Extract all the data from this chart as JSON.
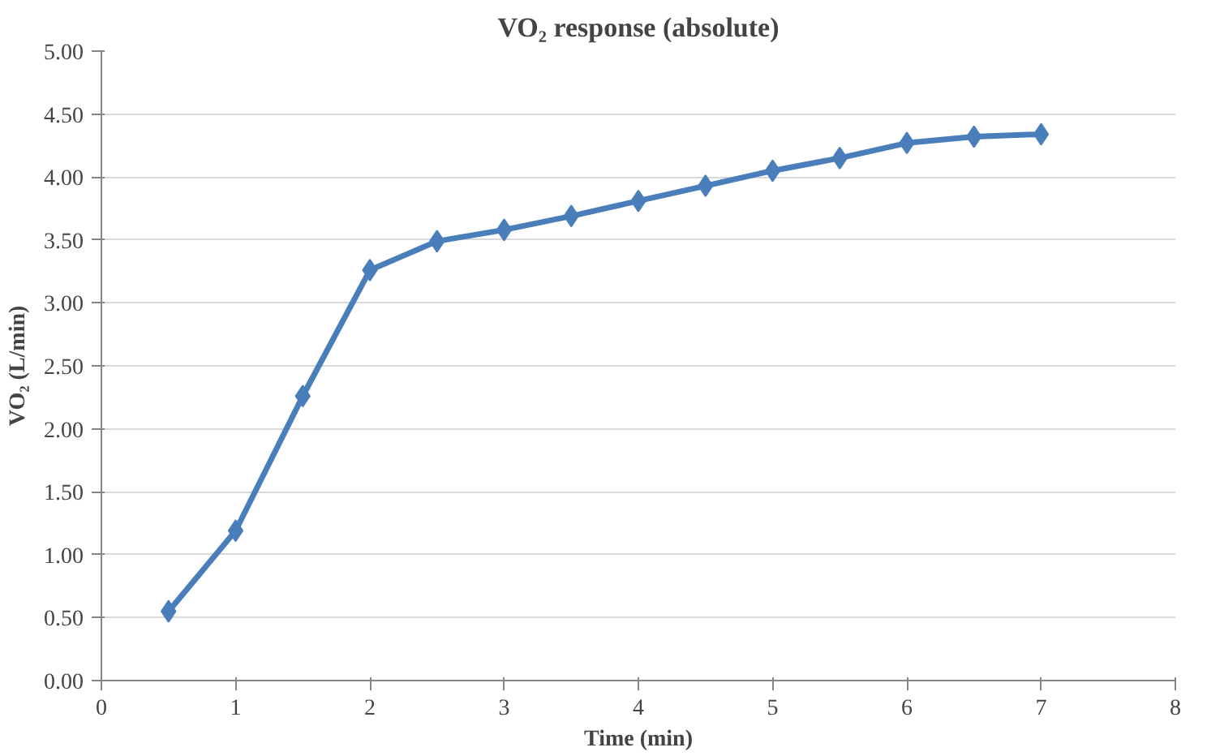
{
  "chart_data": {
    "type": "line",
    "title": "VO₂ response (absolute)",
    "xlabel": "Time (min)",
    "ylabel": "VO₂ (L/min)",
    "x": [
      0.5,
      1,
      1.5,
      2,
      2.5,
      3,
      3.5,
      4,
      4.5,
      5,
      5.5,
      6,
      6.5,
      7
    ],
    "series": [
      {
        "color": "#4a7ebb",
        "values": [
          0.55,
          1.19,
          2.26,
          3.26,
          3.49,
          3.58,
          3.69,
          3.81,
          3.93,
          4.05,
          4.15,
          4.27,
          4.32,
          4.34
        ]
      }
    ],
    "xlim": [
      0,
      8
    ],
    "ylim": [
      0,
      5
    ],
    "xticks": [
      0,
      1,
      2,
      3,
      4,
      5,
      6,
      7,
      8
    ],
    "yticks": [
      {
        "value": 0,
        "label": "0.00"
      },
      {
        "value": 0.5,
        "label": "0.50"
      },
      {
        "value": 1,
        "label": "1.00"
      },
      {
        "value": 1.5,
        "label": "1.50"
      },
      {
        "value": 2,
        "label": "2.00"
      },
      {
        "value": 2.5,
        "label": "2.50"
      },
      {
        "value": 3,
        "label": "3.00"
      },
      {
        "value": 3.5,
        "label": "3.50"
      },
      {
        "value": 4,
        "label": "4.00"
      },
      {
        "value": 4.5,
        "label": "4.50"
      },
      {
        "value": 5,
        "label": "5.00"
      }
    ],
    "grid": "y",
    "marker": "diamond",
    "line_style": "solid"
  }
}
